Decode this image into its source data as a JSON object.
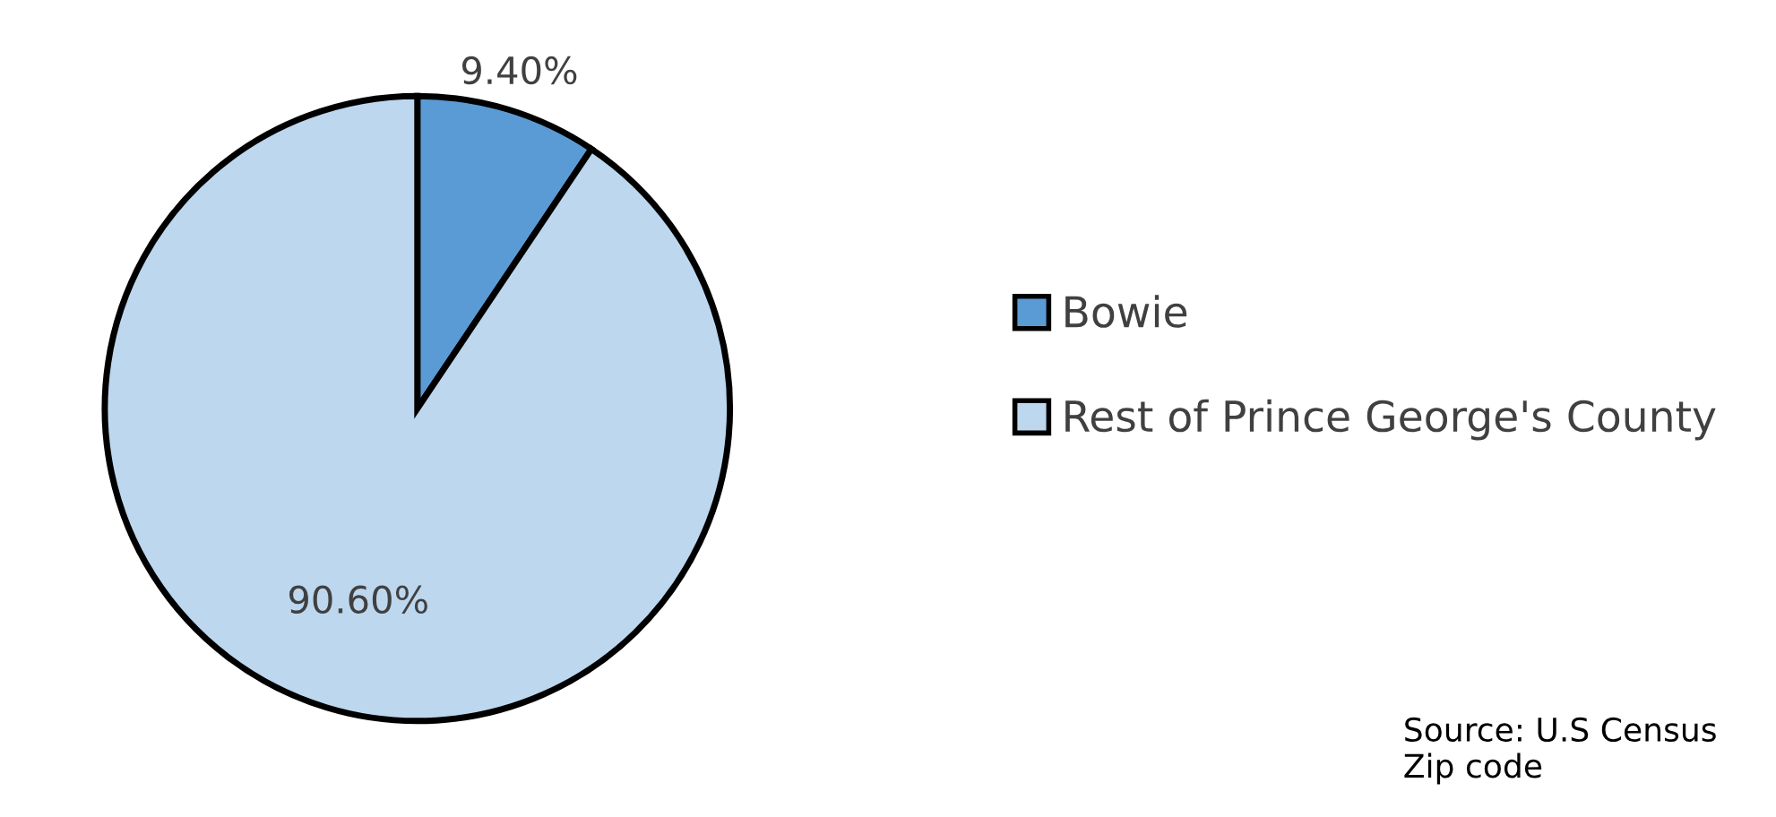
{
  "chart_data": {
    "type": "pie",
    "categories": [
      "Bowie",
      "Rest of Prince George's County"
    ],
    "values": [
      9.4,
      90.6
    ],
    "colors": [
      "#5b9bd5",
      "#bdd7ee"
    ],
    "value_labels": [
      "9.40%",
      "90.60%"
    ],
    "legend": "right",
    "annotations": [
      "Source: U.S Census Zip code"
    ]
  }
}
